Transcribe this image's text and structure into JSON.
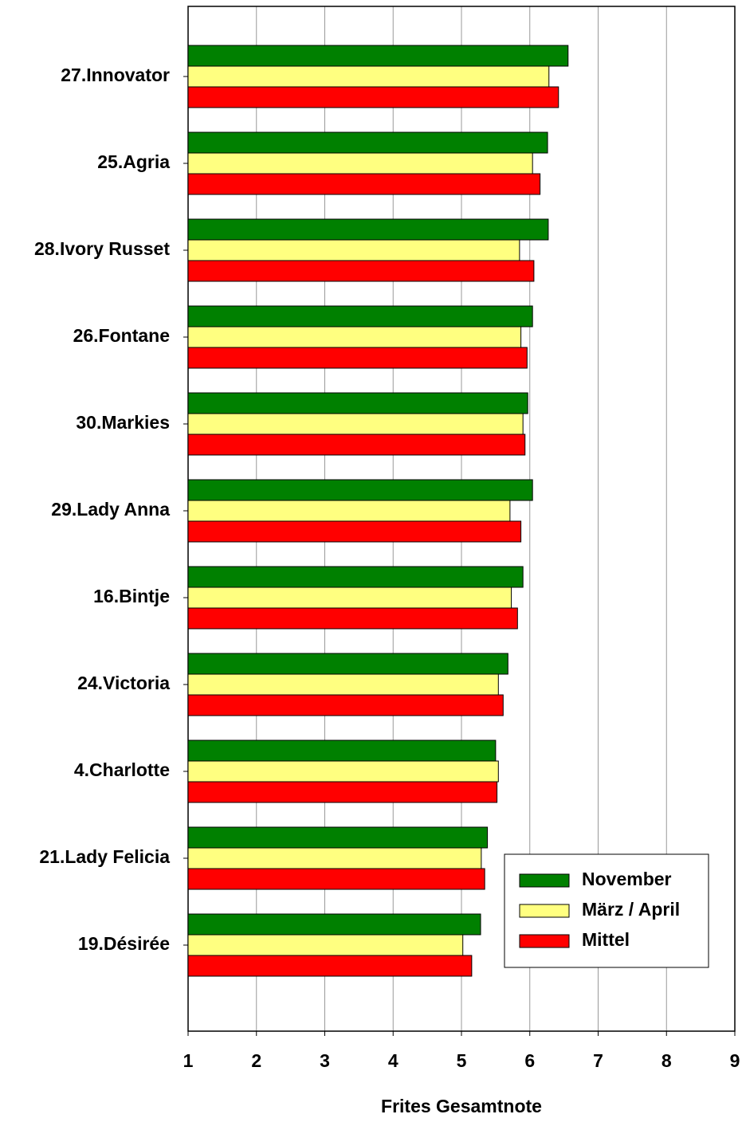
{
  "chart_data": {
    "type": "hbar",
    "x_label": "Frites Gesamtnote",
    "categories": [
      "27.Innovator",
      "25.Agria",
      "28.Ivory Russet",
      "26.Fontane",
      "30.Markies",
      "29.Lady Anna",
      "16.Bintje",
      "24.Victoria",
      "4.Charlotte",
      "21.Lady Felicia",
      "19.Désirée"
    ],
    "series": [
      {
        "name": "November",
        "color": "#008000",
        "values": [
          6.56,
          6.26,
          6.27,
          6.04,
          5.97,
          6.04,
          5.9,
          5.68,
          5.5,
          5.38,
          5.28
        ]
      },
      {
        "name": "März / April",
        "color": "#ffff80",
        "values": [
          6.28,
          6.04,
          5.85,
          5.87,
          5.9,
          5.71,
          5.73,
          5.54,
          5.54,
          5.29,
          5.02
        ]
      },
      {
        "name": "Mittel",
        "color": "#ff0000",
        "values": [
          6.42,
          6.15,
          6.06,
          5.96,
          5.93,
          5.87,
          5.82,
          5.61,
          5.52,
          5.34,
          5.15
        ]
      }
    ],
    "xlim": [
      1,
      9
    ],
    "xticks": [
      1,
      2,
      3,
      4,
      5,
      6,
      7,
      8,
      9
    ],
    "grid": true,
    "legend": "lower right"
  }
}
